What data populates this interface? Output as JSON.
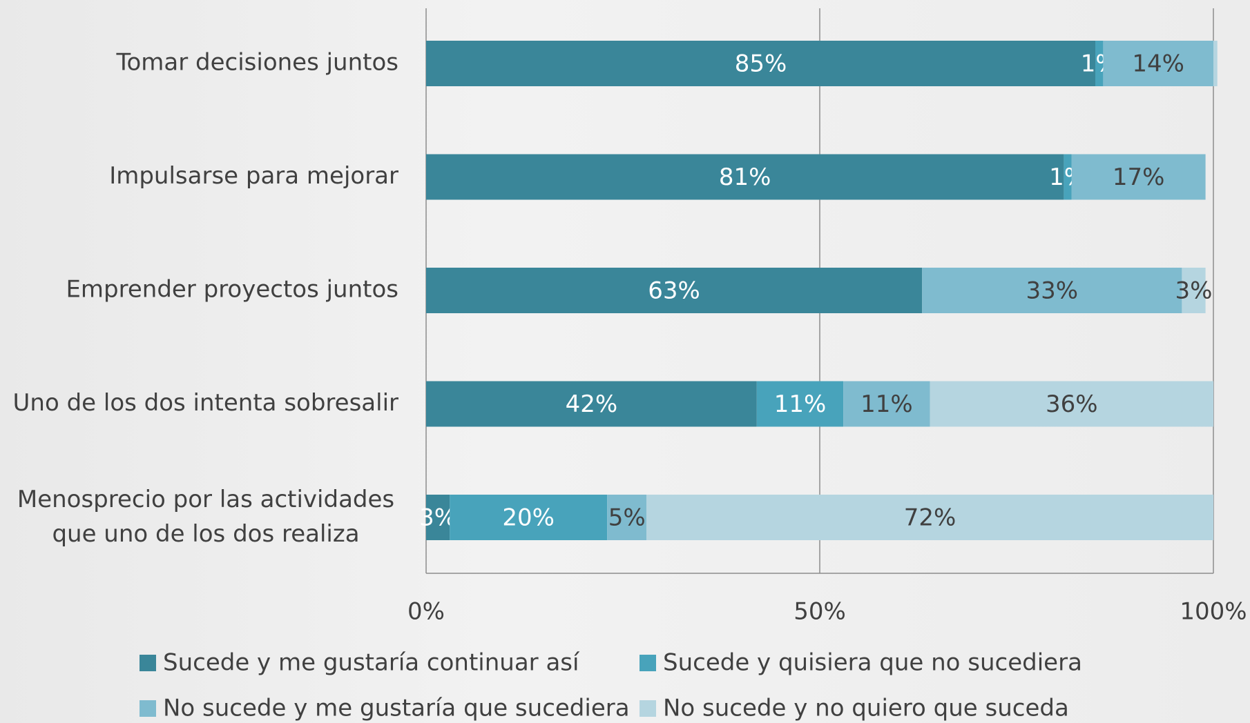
{
  "chart_data": {
    "type": "stacked_bar_horizontal",
    "categories": [
      "Tomar decisiones juntos",
      "Impulsarse para mejorar",
      "Emprender proyectos juntos",
      "Uno de los dos intenta sobresalir",
      "Menosprecio por las actividades\nque uno de los dos realiza"
    ],
    "series": [
      {
        "name": "Sucede y me gustaría continuar así",
        "color": "#3a8699",
        "label_color": "#ffffff",
        "values": [
          85,
          81,
          63,
          42,
          3
        ],
        "value_labels": [
          "85%",
          "81%",
          "63%",
          "42%",
          "3%"
        ]
      },
      {
        "name": "Sucede y quisiera que no sucediera",
        "color": "#48a3bb",
        "label_color": "#ffffff",
        "values": [
          1,
          1,
          null,
          11,
          20
        ],
        "value_labels": [
          "1%",
          "1%",
          null,
          "11%",
          "20%"
        ]
      },
      {
        "name": "No sucede y me gustaría que sucediera",
        "color": "#7fbbcf",
        "label_color": "#404040",
        "values": [
          14,
          17,
          33,
          11,
          5
        ],
        "value_labels": [
          "14%",
          "17%",
          "33%",
          "11%",
          "5%"
        ]
      },
      {
        "name": "No sucede y no quiero que suceda",
        "color": "#b5d5e0",
        "label_color": "#404040",
        "values": [
          0.5,
          null,
          3,
          36,
          72
        ],
        "value_labels": [
          null,
          null,
          "3%",
          "36%",
          "72%"
        ]
      }
    ],
    "xlim": [
      0,
      100
    ],
    "xticks": [
      {
        "value": 0,
        "label": "0%"
      },
      {
        "value": 50,
        "label": "50%"
      },
      {
        "value": 100,
        "label": "100%"
      }
    ],
    "grid": true,
    "legend": "bottom"
  }
}
